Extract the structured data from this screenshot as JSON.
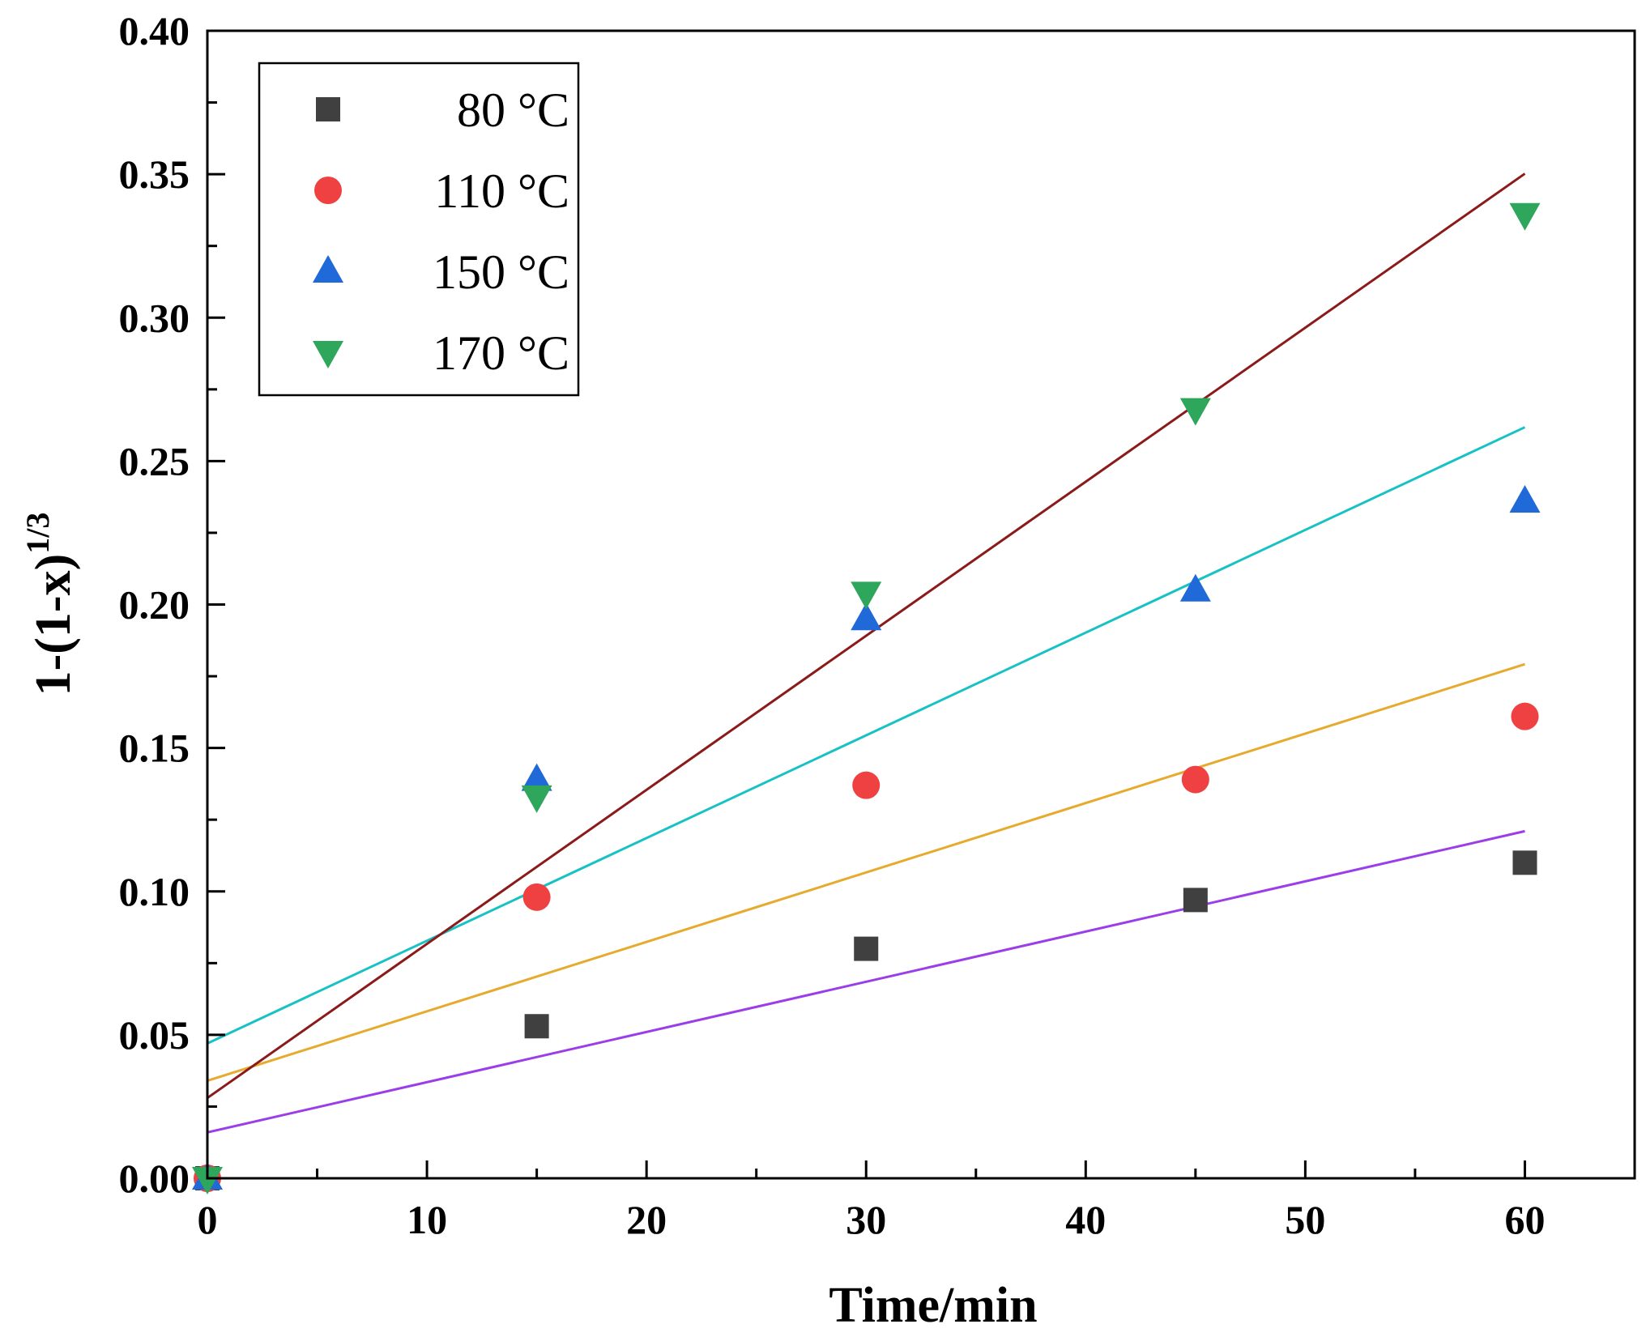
{
  "chart_data": {
    "type": "scatter",
    "title": "",
    "xlabel": "Time/min",
    "ylabel_base": "1-(1-x)",
    "ylabel_exponent": "1/3",
    "xlim": [
      0,
      65
    ],
    "ylim": [
      0,
      0.4
    ],
    "xticks": [
      0,
      10,
      20,
      30,
      40,
      50,
      60
    ],
    "xtick_labels": [
      "0",
      "10",
      "20",
      "30",
      "40",
      "50",
      "60"
    ],
    "yticks": [
      0,
      0.05,
      0.1,
      0.15,
      0.2,
      0.25,
      0.3,
      0.35,
      0.4
    ],
    "ytick_labels": [
      "0.00",
      "0.05",
      "0.10",
      "0.15",
      "0.20",
      "0.25",
      "0.30",
      "0.35",
      "0.40"
    ],
    "legend_position": "top-left",
    "series": [
      {
        "name": "80 °C",
        "marker": "square",
        "color": "#404040",
        "x": [
          0,
          15,
          30,
          45,
          60
        ],
        "y": [
          0.0,
          0.053,
          0.08,
          0.097,
          0.11
        ],
        "fit": {
          "color": "#9b3ee8",
          "intercept": 0.016,
          "slope": 0.00175
        }
      },
      {
        "name": "110 °C",
        "marker": "circle",
        "color": "#ef4141",
        "x": [
          0,
          15,
          30,
          45,
          60
        ],
        "y": [
          0.0,
          0.098,
          0.137,
          0.139,
          0.161
        ],
        "fit": {
          "color": "#e6ab2e",
          "intercept": 0.034,
          "slope": 0.00242
        }
      },
      {
        "name": "150 °C",
        "marker": "triangle-up",
        "color": "#1f6ad8",
        "x": [
          0,
          15,
          30,
          45,
          60
        ],
        "y": [
          0.0,
          0.139,
          0.195,
          0.205,
          0.236
        ],
        "fit": {
          "color": "#17c1c4",
          "intercept": 0.047,
          "slope": 0.00358
        }
      },
      {
        "name": "170 °C",
        "marker": "triangle-down",
        "color": "#2ea65b",
        "x": [
          0,
          15,
          30,
          45,
          60
        ],
        "y": [
          0.0,
          0.133,
          0.204,
          0.268,
          0.336
        ],
        "fit": {
          "color": "#8b1a1a",
          "intercept": 0.028,
          "slope": 0.00537
        }
      }
    ]
  }
}
